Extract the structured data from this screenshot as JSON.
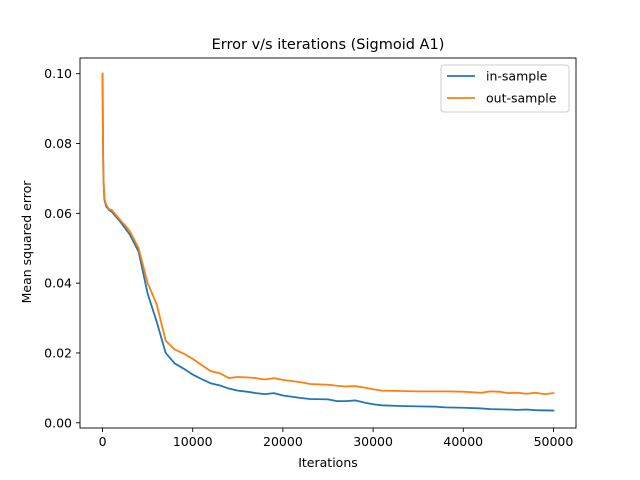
{
  "chart_data": {
    "type": "line",
    "title": "Error v/s iterations (Sigmoid A1)",
    "xlabel": "Iterations",
    "ylabel": "Mean squared error",
    "xlim": [
      -2500,
      52500
    ],
    "ylim": [
      -0.0015,
      0.1045
    ],
    "xticks": [
      0,
      10000,
      20000,
      30000,
      40000,
      50000
    ],
    "yticks": [
      0.0,
      0.02,
      0.04,
      0.06,
      0.08,
      0.1
    ],
    "xtick_labels": [
      "0",
      "10000",
      "20000",
      "30000",
      "40000",
      "50000"
    ],
    "ytick_labels": [
      "0.00",
      "0.02",
      "0.04",
      "0.06",
      "0.08",
      "0.10"
    ],
    "grid": false,
    "legend_position": "top-right",
    "series": [
      {
        "name": "in-sample",
        "color": "#1f77b4",
        "points": [
          [
            0,
            0.1
          ],
          [
            50,
            0.08
          ],
          [
            100,
            0.07
          ],
          [
            200,
            0.064
          ],
          [
            400,
            0.062
          ],
          [
            700,
            0.061
          ],
          [
            1000,
            0.0605
          ],
          [
            1500,
            0.059
          ],
          [
            2000,
            0.0575
          ],
          [
            3000,
            0.054
          ],
          [
            4000,
            0.049
          ],
          [
            4500,
            0.043
          ],
          [
            5000,
            0.037
          ],
          [
            6000,
            0.029
          ],
          [
            7000,
            0.02
          ],
          [
            8000,
            0.017
          ],
          [
            9000,
            0.0155
          ],
          [
            10000,
            0.0138
          ],
          [
            11000,
            0.0125
          ],
          [
            12000,
            0.0113
          ],
          [
            13000,
            0.0107
          ],
          [
            14000,
            0.0098
          ],
          [
            15000,
            0.0092
          ],
          [
            16000,
            0.0089
          ],
          [
            17000,
            0.0085
          ],
          [
            18000,
            0.0082
          ],
          [
            19000,
            0.0085
          ],
          [
            20000,
            0.0078
          ],
          [
            22000,
            0.0071
          ],
          [
            23000,
            0.0068
          ],
          [
            25000,
            0.0067
          ],
          [
            26000,
            0.0062
          ],
          [
            27000,
            0.0062
          ],
          [
            28000,
            0.0064
          ],
          [
            29000,
            0.0058
          ],
          [
            30000,
            0.0053
          ],
          [
            31000,
            0.005
          ],
          [
            33000,
            0.0048
          ],
          [
            35000,
            0.0047
          ],
          [
            37000,
            0.0046
          ],
          [
            38000,
            0.0044
          ],
          [
            40000,
            0.0043
          ],
          [
            42000,
            0.0041
          ],
          [
            43000,
            0.0039
          ],
          [
            45000,
            0.0038
          ],
          [
            46000,
            0.0037
          ],
          [
            47000,
            0.0038
          ],
          [
            48000,
            0.0036
          ],
          [
            50000,
            0.0035
          ]
        ]
      },
      {
        "name": "out-sample",
        "color": "#ff7f0e",
        "points": [
          [
            0,
            0.1
          ],
          [
            50,
            0.08
          ],
          [
            100,
            0.07
          ],
          [
            200,
            0.0645
          ],
          [
            400,
            0.0625
          ],
          [
            700,
            0.0612
          ],
          [
            1000,
            0.061
          ],
          [
            1500,
            0.0595
          ],
          [
            2000,
            0.058
          ],
          [
            3000,
            0.055
          ],
          [
            4000,
            0.05
          ],
          [
            4500,
            0.045
          ],
          [
            5000,
            0.04
          ],
          [
            6000,
            0.034
          ],
          [
            7000,
            0.0235
          ],
          [
            8000,
            0.021
          ],
          [
            9000,
            0.0198
          ],
          [
            10000,
            0.0183
          ],
          [
            11000,
            0.0165
          ],
          [
            12000,
            0.0148
          ],
          [
            13000,
            0.0142
          ],
          [
            14000,
            0.0128
          ],
          [
            15000,
            0.0131
          ],
          [
            16000,
            0.013
          ],
          [
            17000,
            0.0128
          ],
          [
            18000,
            0.0124
          ],
          [
            19000,
            0.0128
          ],
          [
            20000,
            0.0123
          ],
          [
            22000,
            0.0116
          ],
          [
            23000,
            0.0111
          ],
          [
            25000,
            0.0109
          ],
          [
            26000,
            0.0106
          ],
          [
            27000,
            0.0104
          ],
          [
            28000,
            0.0105
          ],
          [
            29000,
            0.0101
          ],
          [
            30000,
            0.0096
          ],
          [
            31000,
            0.0092
          ],
          [
            33000,
            0.0091
          ],
          [
            35000,
            0.009
          ],
          [
            37000,
            0.009
          ],
          [
            38000,
            0.009
          ],
          [
            40000,
            0.0089
          ],
          [
            42000,
            0.0086
          ],
          [
            43000,
            0.009
          ],
          [
            44000,
            0.0089
          ],
          [
            45000,
            0.0085
          ],
          [
            46000,
            0.0086
          ],
          [
            47000,
            0.0083
          ],
          [
            48000,
            0.0086
          ],
          [
            49000,
            0.0082
          ],
          [
            50000,
            0.0085
          ]
        ]
      }
    ]
  }
}
